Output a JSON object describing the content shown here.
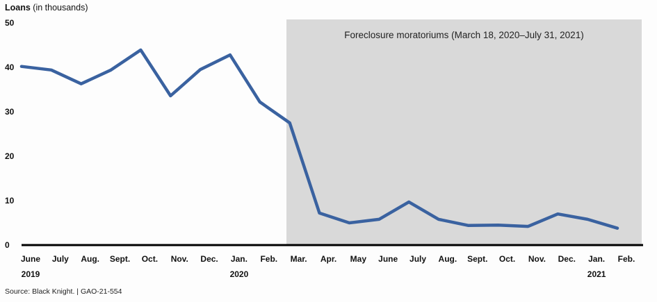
{
  "chart_data": {
    "type": "line",
    "title": "",
    "ylabel_bold": "Loans",
    "ylabel_rest": " (in thousands)",
    "xlabel": "",
    "ylim": [
      0,
      50
    ],
    "yticks": [
      0,
      10,
      20,
      30,
      40,
      50
    ],
    "grid": false,
    "categories": [
      "June",
      "July",
      "Aug.",
      "Sept.",
      "Oct.",
      "Nov.",
      "Dec.",
      "Jan.",
      "Feb.",
      "Mar.",
      "Apr.",
      "May",
      "June",
      "July",
      "Aug.",
      "Sept.",
      "Oct.",
      "Nov.",
      "Dec.",
      "Jan.",
      "Feb."
    ],
    "year_labels": [
      {
        "index": 0,
        "label": "2019"
      },
      {
        "index": 7,
        "label": "2020"
      },
      {
        "index": 19,
        "label": "2021"
      }
    ],
    "series": [
      {
        "name": "Loans",
        "color": "#3a62a0",
        "values": [
          40.2,
          39.4,
          36.3,
          39.4,
          43.9,
          33.6,
          39.5,
          42.8,
          32.2,
          27.5,
          7.2,
          5.0,
          5.8,
          9.7,
          5.8,
          4.4,
          4.5,
          4.2,
          7.0,
          5.8,
          3.8
        ]
      }
    ],
    "annotations": [
      {
        "type": "shaded_region",
        "label": "Foreclosure moratoriums (March 18, 2020–July 31, 2021)",
        "from_index": 9,
        "to_index": 20,
        "color": "#d9d9d9"
      }
    ],
    "source": "Source: Black Knight.  |  GAO-21-554"
  }
}
